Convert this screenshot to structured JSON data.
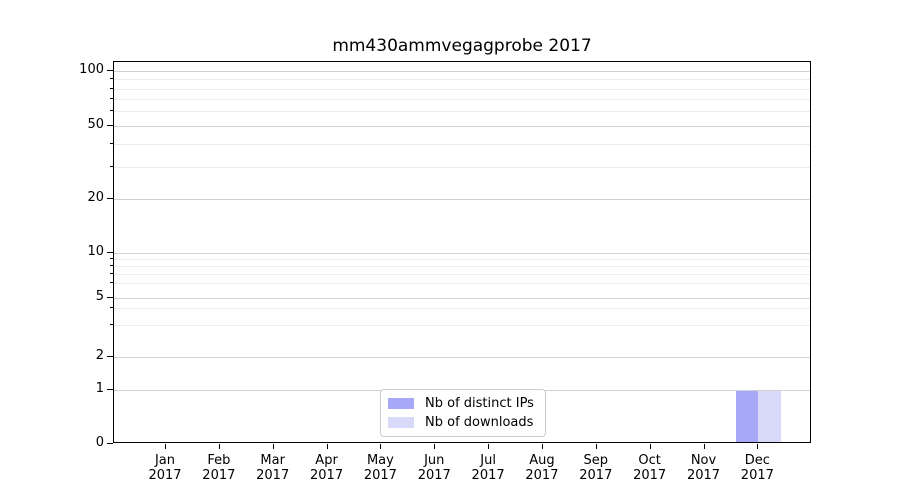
{
  "title": "mm430ammvegagprobe 2017",
  "legend": {
    "items": [
      {
        "label": "Nb of distinct IPs",
        "color": "#a8a8f8"
      },
      {
        "label": "Nb of downloads",
        "color": "#d9d9f9"
      }
    ]
  },
  "y_axis": {
    "tick_labels": [
      "100",
      "50",
      "20",
      "10",
      "5",
      "2",
      "1",
      "0"
    ]
  },
  "x_axis": {
    "year": "2017",
    "months": [
      "Jan",
      "Feb",
      "Mar",
      "Apr",
      "May",
      "Jun",
      "Jul",
      "Aug",
      "Sep",
      "Oct",
      "Nov",
      "Dec"
    ]
  },
  "chart_data": {
    "type": "bar",
    "title": "mm430ammvegagprobe 2017",
    "categories": [
      "Jan 2017",
      "Feb 2017",
      "Mar 2017",
      "Apr 2017",
      "May 2017",
      "Jun 2017",
      "Jul 2017",
      "Aug 2017",
      "Sep 2017",
      "Oct 2017",
      "Nov 2017",
      "Dec 2017"
    ],
    "series": [
      {
        "name": "Nb of distinct IPs",
        "color": "#a8a8f8",
        "values": [
          0,
          0,
          0,
          0,
          0,
          0,
          0,
          0,
          0,
          0,
          0,
          1
        ]
      },
      {
        "name": "Nb of downloads",
        "color": "#d9d9f9",
        "values": [
          0,
          0,
          0,
          0,
          0,
          0,
          0,
          0,
          0,
          0,
          0,
          1
        ]
      }
    ],
    "yscale": "symlog",
    "yticks": [
      0,
      1,
      2,
      5,
      10,
      20,
      50,
      100
    ],
    "ylim": [
      0,
      112
    ],
    "xlabel": "",
    "ylabel": "",
    "grid": "horizontal",
    "legend_position": "lower center inside"
  }
}
